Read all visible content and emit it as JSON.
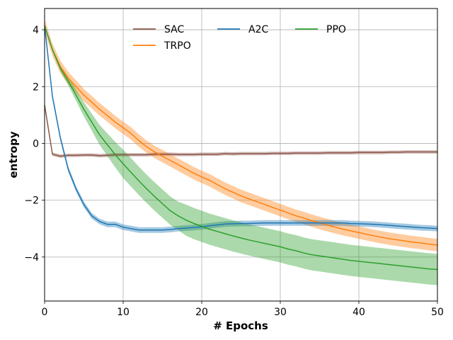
{
  "chart_data": {
    "type": "line",
    "xlabel": "# Epochs",
    "ylabel": "entropy",
    "xlim": [
      0,
      50
    ],
    "ylim": [
      -5.55,
      4.75
    ],
    "xticks": [
      0,
      10,
      20,
      30,
      40,
      50
    ],
    "xtick_labels": [
      "0",
      "10",
      "20",
      "30",
      "40",
      "50"
    ],
    "yticks": [
      4,
      2,
      0,
      -2,
      -4
    ],
    "ytick_labels": [
      "4",
      "2",
      "0",
      "−2",
      "−4"
    ],
    "grid": true,
    "legend": {
      "placement": "top-center",
      "columns": 3
    },
    "x": [
      0,
      1,
      2,
      3,
      4,
      5,
      6,
      7,
      8,
      9,
      10,
      11,
      12,
      13,
      14,
      15,
      16,
      17,
      18,
      19,
      20,
      21,
      22,
      23,
      24,
      25,
      26,
      27,
      28,
      29,
      30,
      31,
      32,
      33,
      34,
      35,
      36,
      37,
      38,
      39,
      40,
      41,
      42,
      43,
      44,
      45,
      46,
      47,
      48,
      49,
      50
    ],
    "series": [
      {
        "name": "SAC",
        "color": "#8c564b",
        "values": [
          1.35,
          -0.38,
          -0.45,
          -0.42,
          -0.42,
          -0.41,
          -0.41,
          -0.43,
          -0.42,
          -0.4,
          -0.4,
          -0.4,
          -0.4,
          -0.4,
          -0.38,
          -0.38,
          -0.38,
          -0.39,
          -0.39,
          -0.39,
          -0.38,
          -0.38,
          -0.38,
          -0.36,
          -0.37,
          -0.36,
          -0.36,
          -0.36,
          -0.36,
          -0.35,
          -0.35,
          -0.35,
          -0.34,
          -0.34,
          -0.34,
          -0.34,
          -0.33,
          -0.33,
          -0.33,
          -0.33,
          -0.32,
          -0.32,
          -0.32,
          -0.32,
          -0.31,
          -0.31,
          -0.3,
          -0.3,
          -0.3,
          -0.3,
          -0.3
        ],
        "band": 0.06
      },
      {
        "name": "TRPO",
        "color": "#ff7f0e",
        "values": [
          4.15,
          3.3,
          2.7,
          2.3,
          2.0,
          1.7,
          1.45,
          1.2,
          0.98,
          0.75,
          0.55,
          0.35,
          0.1,
          -0.12,
          -0.3,
          -0.45,
          -0.6,
          -0.75,
          -0.9,
          -1.05,
          -1.18,
          -1.3,
          -1.45,
          -1.6,
          -1.72,
          -1.85,
          -1.95,
          -2.05,
          -2.15,
          -2.25,
          -2.35,
          -2.45,
          -2.55,
          -2.63,
          -2.72,
          -2.8,
          -2.88,
          -2.95,
          -3.02,
          -3.08,
          -3.14,
          -3.2,
          -3.26,
          -3.31,
          -3.36,
          -3.4,
          -3.44,
          -3.48,
          -3.51,
          -3.55,
          -3.58
        ],
        "band": 0.22
      },
      {
        "name": "A2C",
        "color": "#1f77b4",
        "values": [
          4.15,
          1.65,
          0.2,
          -0.9,
          -1.6,
          -2.15,
          -2.55,
          -2.75,
          -2.85,
          -2.85,
          -2.95,
          -3.0,
          -3.05,
          -3.05,
          -3.05,
          -3.05,
          -3.03,
          -3.0,
          -2.98,
          -2.96,
          -2.94,
          -2.9,
          -2.87,
          -2.84,
          -2.83,
          -2.82,
          -2.82,
          -2.81,
          -2.8,
          -2.8,
          -2.8,
          -2.8,
          -2.8,
          -2.8,
          -2.8,
          -2.8,
          -2.8,
          -2.8,
          -2.8,
          -2.82,
          -2.83,
          -2.84,
          -2.85,
          -2.87,
          -2.89,
          -2.91,
          -2.93,
          -2.95,
          -2.97,
          -2.98,
          -3.0
        ],
        "band": 0.1
      },
      {
        "name": "PPO",
        "color": "#2ca02c",
        "values": [
          4.15,
          3.3,
          2.65,
          2.2,
          1.7,
          1.2,
          0.75,
          0.3,
          -0.05,
          -0.4,
          -0.72,
          -1.02,
          -1.32,
          -1.6,
          -1.87,
          -2.12,
          -2.37,
          -2.55,
          -2.7,
          -2.82,
          -2.92,
          -3.02,
          -3.1,
          -3.18,
          -3.26,
          -3.33,
          -3.4,
          -3.46,
          -3.52,
          -3.58,
          -3.64,
          -3.72,
          -3.78,
          -3.86,
          -3.92,
          -3.96,
          -4.0,
          -4.04,
          -4.08,
          -4.12,
          -4.15,
          -4.18,
          -4.21,
          -4.24,
          -4.27,
          -4.3,
          -4.33,
          -4.36,
          -4.39,
          -4.42,
          -4.44
        ],
        "band": [
          0.0,
          0.05,
          0.1,
          0.15,
          0.2,
          0.25,
          0.3,
          0.35,
          0.4,
          0.45,
          0.5,
          0.5,
          0.5,
          0.5,
          0.5,
          0.5,
          0.5,
          0.5,
          0.55,
          0.55,
          0.55,
          0.55,
          0.55,
          0.55,
          0.55,
          0.55,
          0.55,
          0.55,
          0.55,
          0.55,
          0.55,
          0.55,
          0.55,
          0.55,
          0.55,
          0.55,
          0.55,
          0.55,
          0.55,
          0.55,
          0.55,
          0.55,
          0.55,
          0.55,
          0.55,
          0.55,
          0.55,
          0.55,
          0.55,
          0.55,
          0.55
        ]
      }
    ]
  }
}
